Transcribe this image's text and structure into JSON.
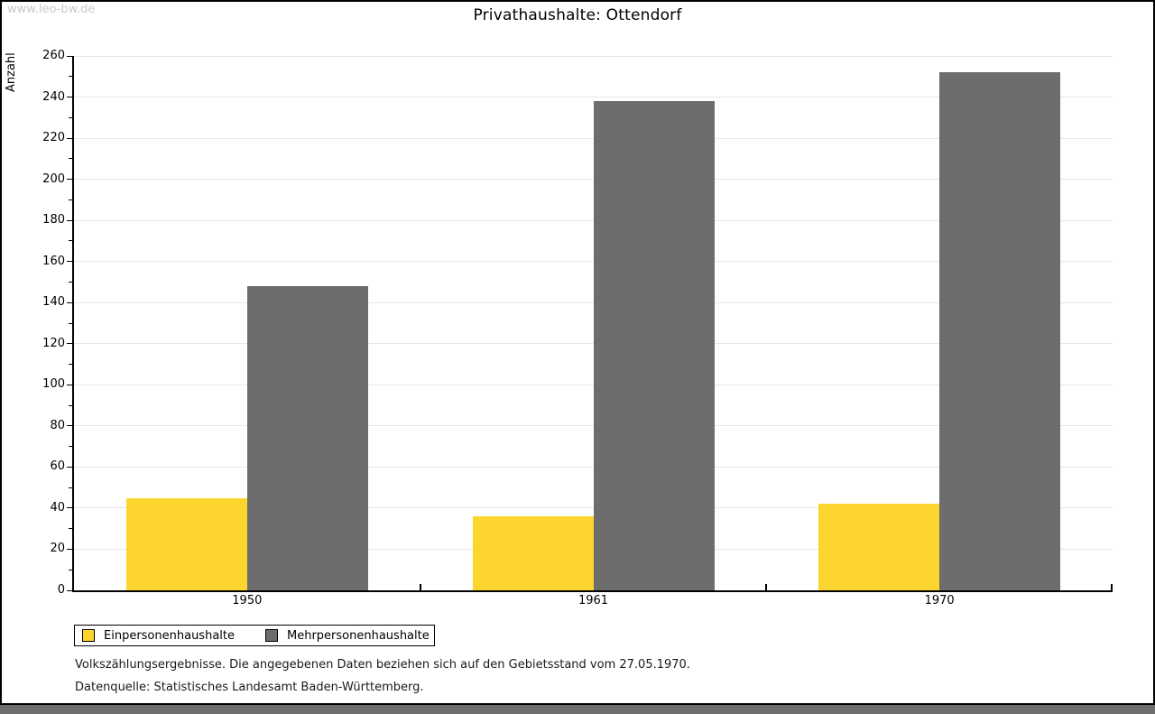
{
  "watermark": "www.leo-bw.de",
  "title": "Privathaushalte: Ottendorf",
  "chart_data": {
    "type": "bar",
    "title": "Privathaushalte: Ottendorf",
    "categories": [
      "1950",
      "1961",
      "1970"
    ],
    "series": [
      {
        "name": "Einpersonenhaushalte",
        "color": "#fcd52e",
        "values": [
          45,
          36,
          42
        ]
      },
      {
        "name": "Mehrpersonenhaushalte",
        "color": "#6d6d6d",
        "values": [
          148,
          238,
          252
        ]
      }
    ],
    "xlabel": "",
    "ylabel": "Anzahl",
    "ylim": [
      0,
      260
    ],
    "ytick_major_step": 20,
    "ytick_minor_step": 10,
    "grid": true,
    "legend_position": "bottom-left"
  },
  "footer": {
    "note": "Volkszählungsergebnisse. Die angegebenen Daten beziehen sich auf den Gebietsstand vom 27.05.1970.",
    "source": "Datenquelle: Statistisches Landesamt Baden-Württemberg."
  },
  "colors": {
    "grid": "#e7e7e7",
    "axis": "#000000",
    "bottom_strip": "#6e6e6e",
    "watermark_text": "#c9c9c9"
  }
}
